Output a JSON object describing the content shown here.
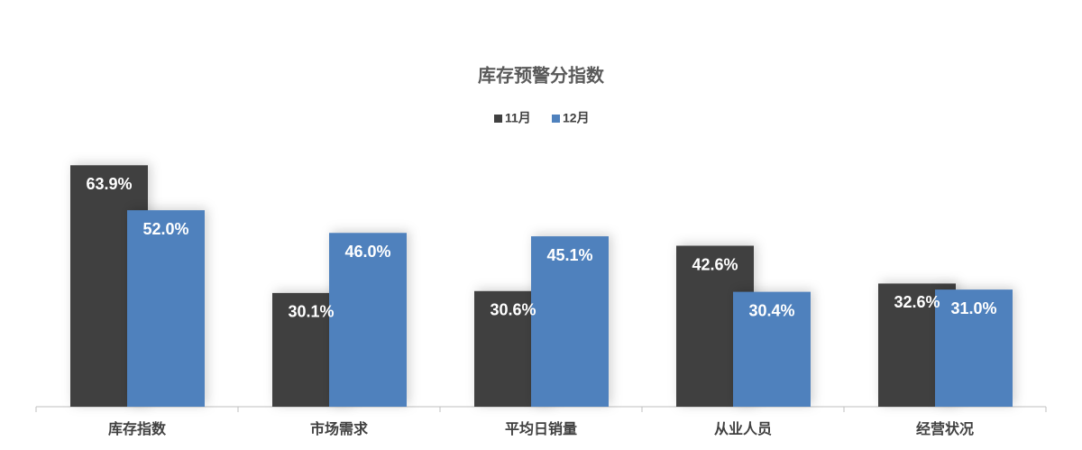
{
  "chart_data": {
    "type": "bar",
    "title": "库存预警分指数",
    "categories": [
      "库存指数",
      "市场需求",
      "平均日销量",
      "从业人员",
      "经营状况"
    ],
    "series": [
      {
        "name": "11月",
        "color": "#404040",
        "values": [
          63.9,
          30.1,
          30.6,
          42.6,
          32.6
        ],
        "value_labels": [
          "63.9%",
          "30.1%",
          "30.6%",
          "42.6%",
          "32.6%"
        ]
      },
      {
        "name": "12月",
        "color": "#4f81bd",
        "values": [
          52.0,
          46.0,
          45.1,
          30.4,
          31.0
        ],
        "value_labels": [
          "52.0%",
          "46.0%",
          "45.1%",
          "30.4%",
          "31.0%"
        ]
      }
    ]
  }
}
